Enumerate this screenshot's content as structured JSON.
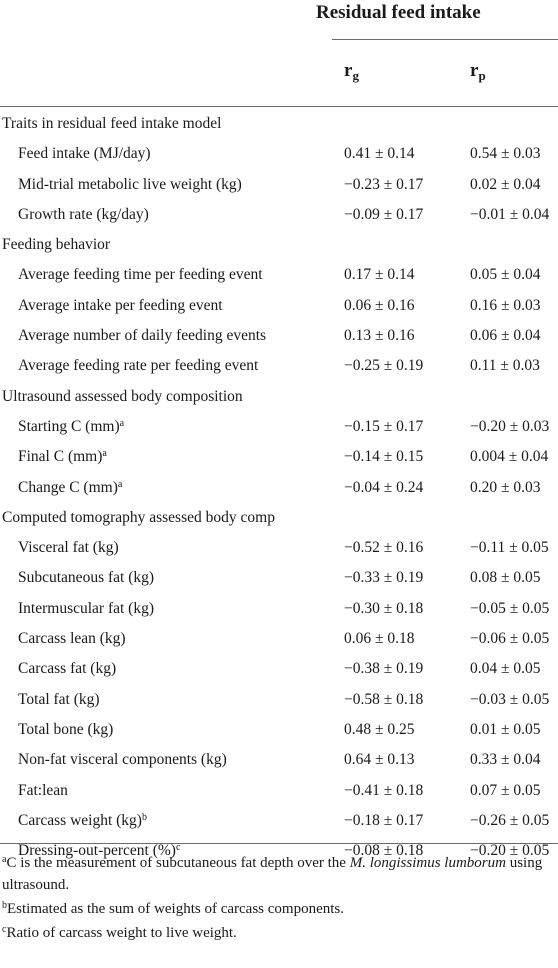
{
  "header": {
    "group_title": "Residual feed intake",
    "col_rg_main": "r",
    "col_rg_sub": "g",
    "col_rp_main": "r",
    "col_rp_sub": "p"
  },
  "rows": [
    {
      "type": "section",
      "label": "Traits in residual feed intake model",
      "sup": "",
      "rg": "",
      "rp": ""
    },
    {
      "type": "item",
      "label": "Feed intake (MJ/day)",
      "sup": "",
      "rg": "0.41 ± 0.14",
      "rp": "0.54 ± 0.03"
    },
    {
      "type": "item",
      "label": "Mid-trial metabolic live weight (kg)",
      "sup": "",
      "rg": "−0.23 ± 0.17",
      "rp": "0.02 ± 0.04"
    },
    {
      "type": "item",
      "label": "Growth rate (kg/day)",
      "sup": "",
      "rg": "−0.09 ± 0.17",
      "rp": "−0.01 ± 0.04"
    },
    {
      "type": "section",
      "label": "Feeding behavior",
      "sup": "",
      "rg": "",
      "rp": ""
    },
    {
      "type": "item",
      "label": "Average feeding time per feeding event",
      "sup": "",
      "rg": "0.17 ± 0.14",
      "rp": "0.05 ± 0.04"
    },
    {
      "type": "item",
      "label": "Average intake per feeding event",
      "sup": "",
      "rg": "0.06 ± 0.16",
      "rp": "0.16 ± 0.03"
    },
    {
      "type": "item",
      "label": "Average number of daily feeding events",
      "sup": "",
      "rg": "0.13 ± 0.16",
      "rp": "0.06 ± 0.04"
    },
    {
      "type": "item",
      "label": "Average feeding rate per feeding event",
      "sup": "",
      "rg": "−0.25 ± 0.19",
      "rp": "0.11 ± 0.03"
    },
    {
      "type": "section",
      "label": "Ultrasound assessed body composition",
      "sup": "",
      "rg": "",
      "rp": ""
    },
    {
      "type": "item",
      "label": "Starting C (mm)",
      "sup": "a",
      "rg": "−0.15 ± 0.17",
      "rp": "−0.20 ± 0.03"
    },
    {
      "type": "item",
      "label": "Final C (mm)",
      "sup": "a",
      "rg": "−0.14 ± 0.15",
      "rp": "0.004 ± 0.04"
    },
    {
      "type": "item",
      "label": "Change C (mm)",
      "sup": "a",
      "rg": "−0.04 ± 0.24",
      "rp": "0.20 ± 0.03"
    },
    {
      "type": "section",
      "label": "Computed tomography assessed body comp",
      "sup": "",
      "rg": "",
      "rp": ""
    },
    {
      "type": "item",
      "label": "Visceral fat (kg)",
      "sup": "",
      "rg": "−0.52 ± 0.16",
      "rp": "−0.11 ± 0.05"
    },
    {
      "type": "item",
      "label": "Subcutaneous fat (kg)",
      "sup": "",
      "rg": "−0.33 ± 0.19",
      "rp": "0.08 ± 0.05"
    },
    {
      "type": "item",
      "label": "Intermuscular fat (kg)",
      "sup": "",
      "rg": "−0.30 ± 0.18",
      "rp": "−0.05 ± 0.05"
    },
    {
      "type": "item",
      "label": "Carcass lean (kg)",
      "sup": "",
      "rg": "0.06 ± 0.18",
      "rp": "−0.06 ± 0.05"
    },
    {
      "type": "item",
      "label": "Carcass fat (kg)",
      "sup": "",
      "rg": "−0.38 ± 0.19",
      "rp": "0.04 ± 0.05"
    },
    {
      "type": "item",
      "label": "Total fat (kg)",
      "sup": "",
      "rg": "−0.58 ± 0.18",
      "rp": "−0.03 ± 0.05"
    },
    {
      "type": "item",
      "label": "Total bone (kg)",
      "sup": "",
      "rg": "0.48 ± 0.25",
      "rp": "0.01 ± 0.05"
    },
    {
      "type": "item",
      "label": "Non-fat visceral components (kg)",
      "sup": "",
      "rg": "0.64 ± 0.13",
      "rp": "0.33 ± 0.04"
    },
    {
      "type": "item",
      "label": "Fat:lean",
      "sup": "",
      "rg": "−0.41 ± 0.18",
      "rp": "0.07 ± 0.05"
    },
    {
      "type": "item",
      "label": "Carcass weight (kg)",
      "sup": "b",
      "rg": "−0.18 ± 0.17",
      "rp": "−0.26 ± 0.05"
    },
    {
      "type": "item",
      "label": "Dressing-out-percent (%)",
      "sup": "c",
      "rg": "−0.08 ± 0.18",
      "rp": "−0.20 ± 0.05"
    }
  ],
  "footnotes": {
    "a_mark": "a",
    "a_text_1": "C is the measurement of subcutaneous fat depth over the ",
    "a_text_italic": "M. longissimus lumborum",
    "a_text_2": " using ultrasound.",
    "b_mark": "b",
    "b_text": "Estimated as the sum of weights of carcass components.",
    "c_mark": "c",
    "c_text": "Ratio of carcass weight to live weight."
  }
}
